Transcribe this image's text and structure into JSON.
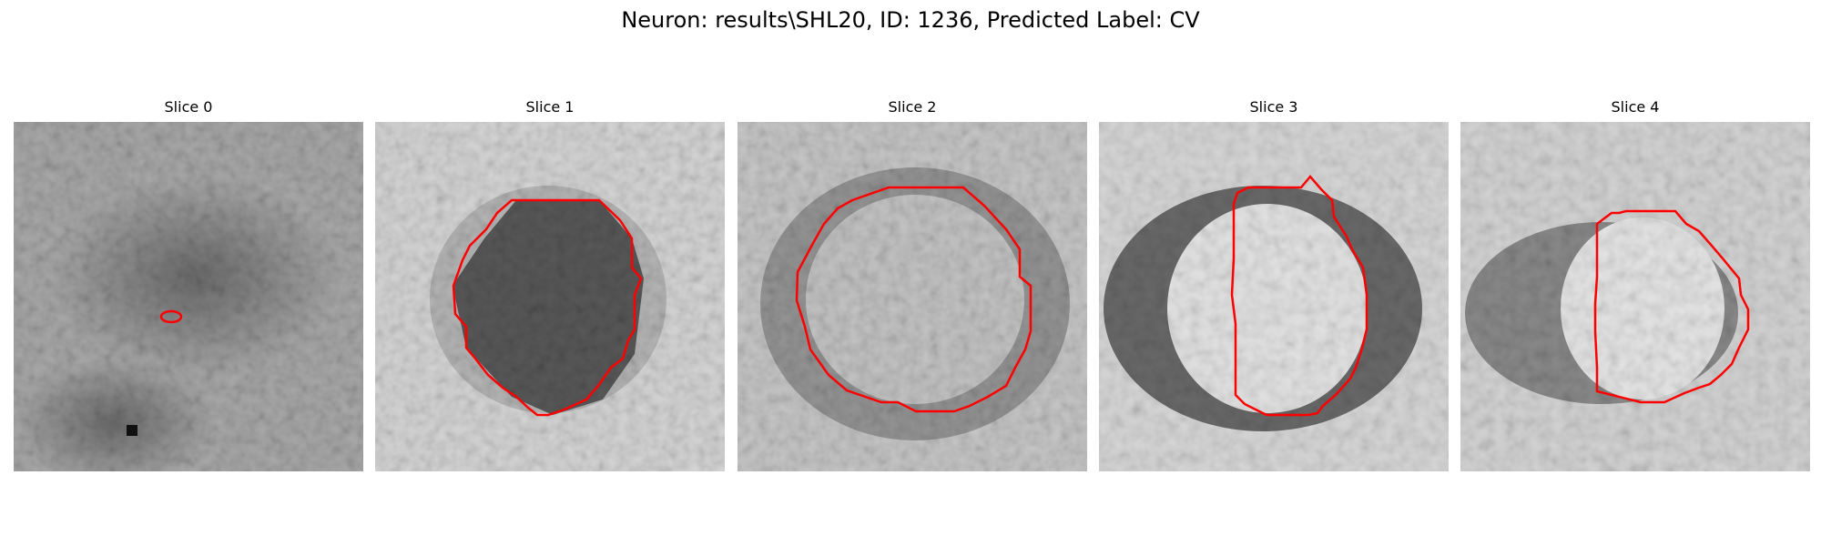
{
  "figure": {
    "suptitle": "Neuron: results\\SHL20, ID: 1236, Predicted Label: CV"
  },
  "panels": [
    {
      "title": "Slice 0"
    },
    {
      "title": "Slice 1"
    },
    {
      "title": "Slice 2"
    },
    {
      "title": "Slice 3"
    },
    {
      "title": "Slice 4"
    }
  ],
  "colors": {
    "contour": "#ff0000",
    "background": "#ffffff"
  }
}
